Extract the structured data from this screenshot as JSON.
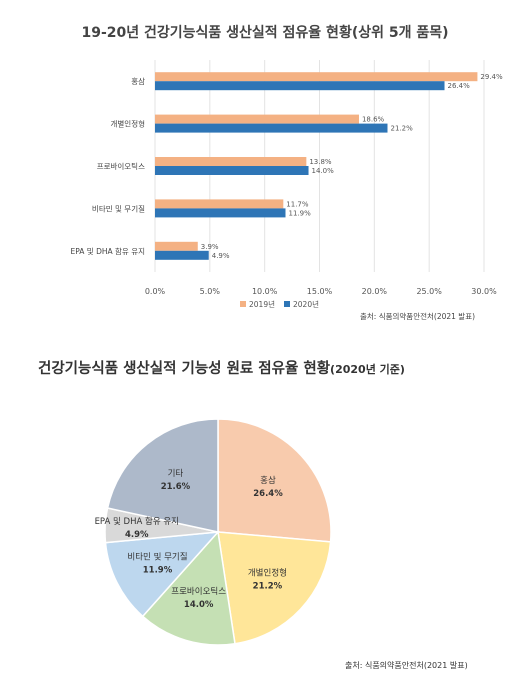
{
  "chart_data": [
    {
      "type": "bar",
      "orientation": "horizontal",
      "title": "19-20년 건강기능식품 생산실적 점유율 현황(상위 5개 품목)",
      "categories": [
        "홍삼",
        "개별인정형",
        "프로바이오틱스",
        "비타민 및 무기질",
        "EPA 및 DHA 함유 유지"
      ],
      "series": [
        {
          "name": "2019년",
          "color": "#f4b183",
          "values": [
            29.4,
            18.6,
            13.8,
            11.7,
            3.9
          ],
          "labels": [
            "29.4%",
            "18.6%",
            "13.8%",
            "11.7%",
            "3.9%"
          ]
        },
        {
          "name": "2020년",
          "color": "#2e75b6",
          "values": [
            26.4,
            21.2,
            14.0,
            11.9,
            4.9
          ],
          "labels": [
            "26.4%",
            "21.2%",
            "14.0%",
            "11.9%",
            "4.9%"
          ]
        }
      ],
      "xlim": [
        0,
        30
      ],
      "xticks": [
        "0.0%",
        "5.0%",
        "10.0%",
        "15.0%",
        "20.0%",
        "25.0%",
        "30.0%"
      ],
      "grid": true,
      "legend": "bottom",
      "source": "출처: 식품의약품안전처(2021 발표)"
    },
    {
      "type": "pie",
      "title": "건강기능식품 생산실적 기능성 원료 점유율 현황",
      "subtitle": "(2020년 기준)",
      "slices": [
        {
          "label": "홍삼",
          "value": 26.4,
          "display": "26.4%",
          "color": "#f8cbad"
        },
        {
          "label": "개별인정형",
          "value": 21.2,
          "display": "21.2%",
          "color": "#ffe699"
        },
        {
          "label": "프로바이오틱스",
          "value": 14.0,
          "display": "14.0%",
          "color": "#c5e0b4"
        },
        {
          "label": "비타민 및 무기질",
          "value": 11.9,
          "display": "11.9%",
          "color": "#bdd7ee"
        },
        {
          "label": "EPA 및 DHA 함유 유지",
          "value": 4.9,
          "display": "4.9%",
          "color": "#d9d9d9"
        },
        {
          "label": "기타",
          "value": 21.6,
          "display": "21.6%",
          "color": "#adb9ca"
        }
      ],
      "legend": "none",
      "source": "출처: 식품의약품안전처(2021 발표)"
    }
  ]
}
